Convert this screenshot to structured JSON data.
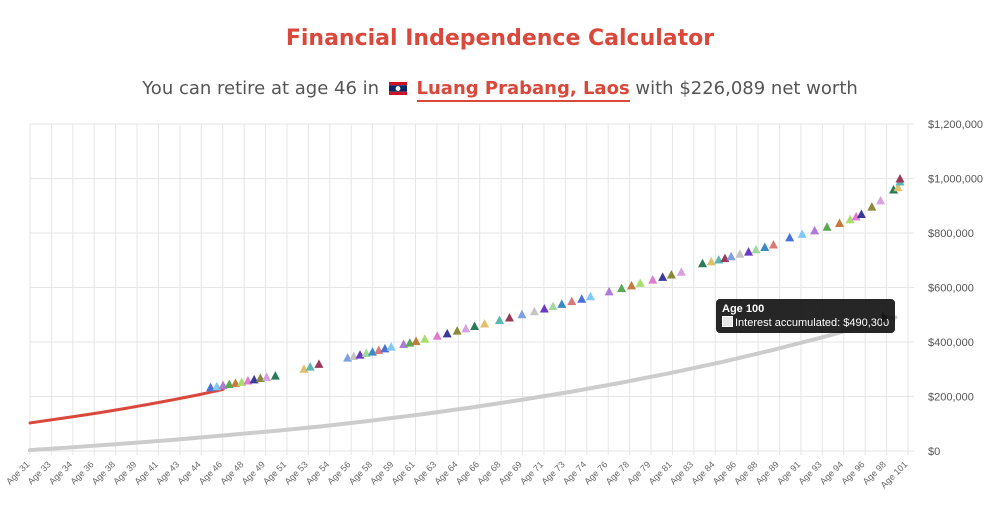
{
  "header": {
    "title": "Financial Independence Calculator",
    "subtitle_pre": "You can retire at age 46 in",
    "city": "Luang Prabang, Laos",
    "subtitle_post": "with $226,089 net worth"
  },
  "tooltip": {
    "title": "Age 100",
    "label": "Interest accumulated: $490,300"
  },
  "colors": {
    "networth_line": "#d9483b",
    "interest_line": "#cccccc",
    "grid": "#e6e6e6"
  },
  "chart_data": {
    "type": "line",
    "y_axis_position": "right",
    "ylim": [
      0,
      1200000
    ],
    "y_ticks": [
      "$0",
      "$200,000",
      "$400,000",
      "$600,000",
      "$800,000",
      "$1,000,000",
      "$1,200,000"
    ],
    "x_tick_labels": [
      "Age 31",
      "Age 33",
      "Age 34",
      "Age 36",
      "Age 38",
      "Age 39",
      "Age 41",
      "Age 43",
      "Age 44",
      "Age 46",
      "Age 48",
      "Age 49",
      "Age 51",
      "Age 53",
      "Age 54",
      "Age 56",
      "Age 58",
      "Age 59",
      "Age 61",
      "Age 63",
      "Age 64",
      "Age 66",
      "Age 68",
      "Age 69",
      "Age 71",
      "Age 73",
      "Age 74",
      "Age 76",
      "Age 78",
      "Age 79",
      "Age 81",
      "Age 83",
      "Age 84",
      "Age 86",
      "Age 88",
      "Age 89",
      "Age 91",
      "Age 93",
      "Age 94",
      "Age 96",
      "Age 98",
      "Age 101"
    ],
    "x_range": [
      30.5,
      101
    ],
    "series": [
      {
        "name": "Net worth",
        "style": "line",
        "points": [
          [
            30.5,
            103000
          ],
          [
            32,
            113000
          ],
          [
            34,
            126000
          ],
          [
            36,
            140000
          ],
          [
            38,
            155000
          ],
          [
            40,
            171000
          ],
          [
            42,
            188000
          ],
          [
            44,
            206000
          ],
          [
            46,
            226000
          ]
        ]
      },
      {
        "name": "Interest accumulated",
        "style": "line",
        "points": [
          [
            30.5,
            3000
          ],
          [
            34,
            14000
          ],
          [
            38,
            27000
          ],
          [
            42,
            41000
          ],
          [
            46,
            57000
          ],
          [
            50,
            73000
          ],
          [
            54,
            91000
          ],
          [
            58,
            112000
          ],
          [
            62,
            135000
          ],
          [
            66,
            160000
          ],
          [
            70,
            188000
          ],
          [
            74,
            218000
          ],
          [
            78,
            251000
          ],
          [
            82,
            287000
          ],
          [
            86,
            326000
          ],
          [
            90,
            369000
          ],
          [
            94,
            416000
          ],
          [
            98,
            466000
          ],
          [
            100,
            490300
          ]
        ]
      },
      {
        "style": "triangles",
        "points": [
          [
            45,
            232000
          ],
          [
            45.5,
            236000
          ],
          [
            46,
            240000
          ],
          [
            46.5,
            244000
          ],
          [
            47,
            248000
          ],
          [
            47.5,
            252000
          ],
          [
            48,
            257000
          ],
          [
            48.5,
            261000
          ],
          [
            49,
            266000
          ],
          [
            49.5,
            270000
          ],
          [
            50.2,
            275000
          ],
          [
            52.5,
            300000
          ],
          [
            53,
            308000
          ],
          [
            53.7,
            318000
          ],
          [
            56,
            341000
          ],
          [
            56.5,
            347000
          ],
          [
            57,
            352000
          ],
          [
            57.5,
            358000
          ],
          [
            58,
            363000
          ],
          [
            58.5,
            369000
          ],
          [
            59,
            375000
          ],
          [
            59.5,
            381000
          ],
          [
            60.5,
            391000
          ],
          [
            61,
            396000
          ],
          [
            61.5,
            402000
          ],
          [
            62.2,
            410000
          ],
          [
            63.2,
            421000
          ],
          [
            64,
            430000
          ],
          [
            64.8,
            440000
          ],
          [
            65.5,
            448000
          ],
          [
            66.2,
            457000
          ],
          [
            67,
            466000
          ],
          [
            68.2,
            479000
          ],
          [
            69,
            488000
          ],
          [
            70,
            500000
          ],
          [
            71,
            511000
          ],
          [
            71.8,
            521000
          ],
          [
            72.5,
            530000
          ],
          [
            73.2,
            538000
          ],
          [
            74,
            548000
          ],
          [
            74.8,
            557000
          ],
          [
            75.5,
            566000
          ],
          [
            77,
            584000
          ],
          [
            78,
            596000
          ],
          [
            78.8,
            606000
          ],
          [
            79.5,
            615000
          ],
          [
            80.5,
            627000
          ],
          [
            81.3,
            637000
          ],
          [
            82,
            646000
          ],
          [
            82.8,
            656000
          ],
          [
            84.5,
            687000
          ],
          [
            85.2,
            694000
          ],
          [
            85.8,
            701000
          ],
          [
            86.3,
            706000
          ],
          [
            86.8,
            713000
          ],
          [
            87.5,
            722000
          ],
          [
            88.2,
            730000
          ],
          [
            88.8,
            738000
          ],
          [
            89.5,
            747000
          ],
          [
            90.2,
            756000
          ],
          [
            91.5,
            782000
          ],
          [
            92.5,
            795000
          ],
          [
            93.5,
            808000
          ],
          [
            94.5,
            821000
          ],
          [
            95.5,
            835000
          ],
          [
            96.5,
            848000
          ],
          [
            97.2,
            859000
          ],
          [
            97.8,
            868000
          ],
          [
            99,
            895000
          ],
          [
            100,
            918000
          ],
          [
            101.5,
            958000
          ],
          [
            102,
            966000
          ],
          [
            103,
            987000
          ],
          [
            103.5,
            998000
          ]
        ]
      }
    ]
  }
}
